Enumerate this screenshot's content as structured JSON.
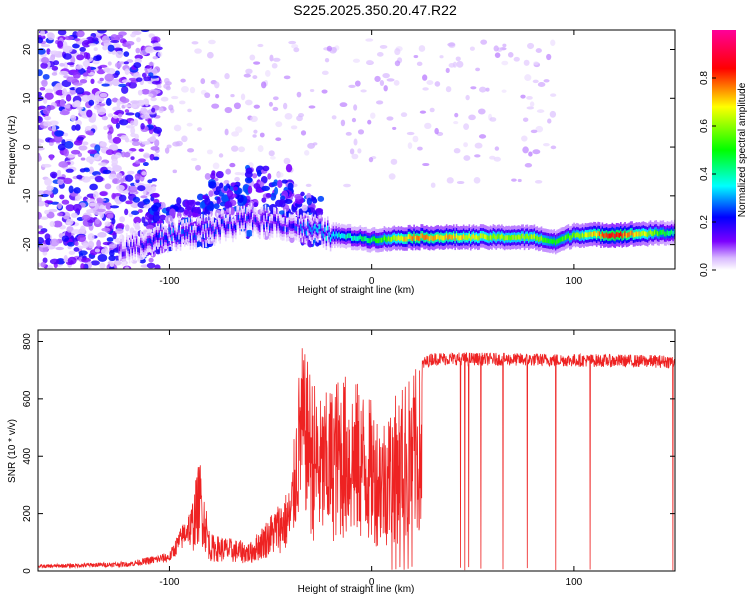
{
  "title": "S225.2025.350.20.47.R22",
  "chart_data": [
    {
      "type": "heatmap",
      "xlabel": "Height of straight line (km)",
      "ylabel": "Frequency (Hz)",
      "xlim": [
        -165,
        150
      ],
      "ylim": [
        -25,
        24
      ],
      "xticks": [
        -100,
        0,
        100
      ],
      "yticks": [
        -20,
        -10,
        0,
        10,
        20
      ],
      "colorbar": {
        "label": "Normalized spectral amplitude",
        "range": [
          0,
          1
        ],
        "ticks": [
          "0.0",
          "0.2",
          "0.4",
          "0.6",
          "0.8"
        ],
        "colormap": [
          "#ffffff",
          "#7b00ff",
          "#0000ff",
          "#00ffff",
          "#00ff00",
          "#ffff00",
          "#ff0000",
          "#ff00aa"
        ]
      },
      "ridge": {
        "x": [
          -120,
          -100,
          -80,
          -60,
          -40,
          -30,
          -20,
          -10,
          0,
          20,
          40,
          60,
          80,
          90,
          100,
          120,
          150
        ],
        "y": [
          -21,
          -18,
          -17,
          -15,
          -16,
          -17,
          -18,
          -18.5,
          -19,
          -18.5,
          -18.5,
          -18.5,
          -18.5,
          -19.5,
          -18,
          -18,
          -17.5
        ],
        "amp": [
          0.15,
          0.25,
          0.2,
          0.2,
          0.2,
          0.3,
          0.35,
          0.4,
          0.45,
          0.75,
          0.7,
          0.6,
          0.6,
          0.5,
          0.55,
          0.85,
          0.4
        ]
      }
    },
    {
      "type": "line",
      "xlabel": "Height of straight line (km)",
      "ylabel": "SNR (10 * v/v)",
      "xlim": [
        -165,
        150
      ],
      "ylim": [
        0,
        840
      ],
      "xticks": [
        -100,
        0,
        100
      ],
      "yticks": [
        0,
        200,
        400,
        600,
        800
      ],
      "color": "#ee2222",
      "envelope": {
        "x": [
          -165,
          -120,
          -100,
          -90,
          -85,
          -80,
          -60,
          -40,
          -35,
          -25,
          -15,
          -5,
          5,
          15,
          20,
          25,
          30,
          40,
          150
        ],
        "y": [
          20,
          30,
          60,
          200,
          400,
          130,
          100,
          300,
          800,
          600,
          700,
          650,
          540,
          650,
          700,
          720,
          740,
          740,
          730
        ]
      },
      "dropouts_x": [
        10,
        12,
        14,
        16,
        18,
        20,
        44,
        46,
        48,
        54,
        65,
        77,
        91,
        108,
        149
      ]
    }
  ]
}
